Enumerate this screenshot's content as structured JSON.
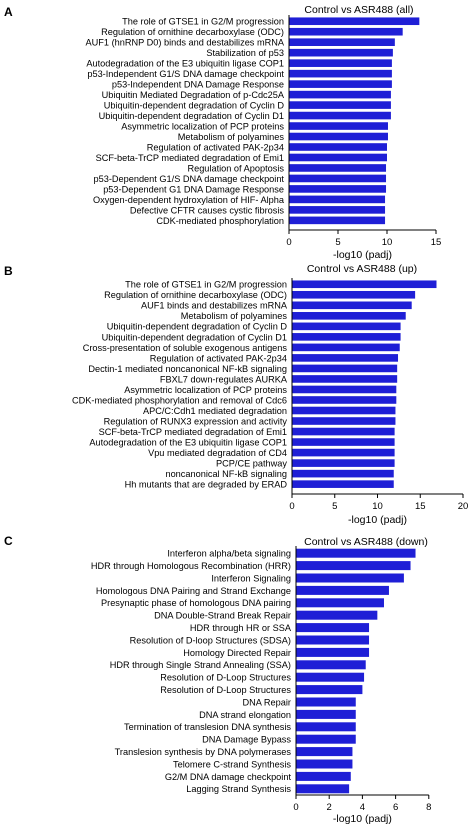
{
  "chart_data": [
    {
      "type": "bar",
      "orientation": "horizontal",
      "panel": "A",
      "title": "Control vs ASR488 (all)",
      "xlabel": "-log10 (padj)",
      "xlim": [
        0,
        15
      ],
      "xticks": [
        0,
        5,
        10,
        15
      ],
      "color": "#1f1fd6",
      "grid": false,
      "categories": [
        "The role of GTSE1 in G2/M progression",
        "Regulation of ornithine decarboxylase (ODC)",
        "AUF1 (hnRNP D0) binds and destabilizes mRNA",
        "Stabilization of p53",
        "Autodegradation of the E3 ubiquitin ligase COP1",
        "p53-Independent G1/S DNA damage checkpoint",
        "p53-Independent DNA Damage Response",
        "Ubiquitin Mediated Degradation of p-Cdc25A",
        "Ubiquitin-dependent degradation of Cyclin D",
        "Ubiquitin-dependent degradation of Cyclin D1",
        "Asymmetric localization of PCP proteins",
        "Metabolism of polyamines",
        "Regulation of activated PAK-2p34",
        "SCF-beta-TrCP mediated degradation of Emi1",
        "Regulation of Apoptosis",
        "p53-Dependent G1/S DNA damage checkpoint",
        "p53-Dependent G1 DNA Damage Response",
        "Oxygen-dependent hydroxylation of HIF- Alpha",
        "Defective CFTR causes cystic fibrosis",
        "CDK-mediated phosphorylation"
      ],
      "values": [
        13.3,
        11.6,
        10.8,
        10.6,
        10.5,
        10.5,
        10.5,
        10.4,
        10.4,
        10.4,
        10.1,
        10.1,
        10.0,
        10.0,
        9.9,
        9.9,
        9.9,
        9.8,
        9.8,
        9.8
      ]
    },
    {
      "type": "bar",
      "orientation": "horizontal",
      "panel": "B",
      "title": "Control vs ASR488 (up)",
      "xlabel": "-log10 (padj)",
      "xlim": [
        0,
        20
      ],
      "xticks": [
        0,
        5,
        10,
        15,
        20
      ],
      "color": "#1f1fd6",
      "grid": false,
      "categories": [
        "The role of GTSE1 in G2/M progression",
        "Regulation of ornithine decarboxylase (ODC)",
        "AUF1 binds and destabilizes mRNA",
        "Metabolism of polyamines",
        "Ubiquitin-dependent degradation of Cyclin D",
        "Ubiquitin-dependent degradation of Cyclin D1",
        "Cross-presentation of soluble exogenous antigens",
        "Regulation of activated PAK-2p34",
        "Dectin-1 mediated noncanonical NF-kB signaling",
        "FBXL7 down-regulates AURKA",
        "Asymmetric localization of PCP proteins",
        "CDK-mediated phosphorylation and removal of Cdc6",
        "APC/C:Cdh1 mediated degradation",
        "Regulation of RUNX3 expression and activity",
        "SCF-beta-TrCP mediated degradation of Emi1",
        "Autodegradation of the E3 ubiquitin ligase COP1",
        "Vpu mediated degradation of CD4",
        "PCP/CE pathway",
        "noncanonical NF-kB signaling",
        "Hh mutants that are degraded by ERAD"
      ],
      "values": [
        16.9,
        14.4,
        14.0,
        13.3,
        12.7,
        12.7,
        12.6,
        12.4,
        12.3,
        12.3,
        12.2,
        12.2,
        12.1,
        12.1,
        12.0,
        12.0,
        12.0,
        12.0,
        11.9,
        11.9
      ]
    },
    {
      "type": "bar",
      "orientation": "horizontal",
      "panel": "C",
      "title": "Control vs ASR488 (down)",
      "xlabel": "-log10 (padj)",
      "xlim": [
        0,
        8
      ],
      "xticks": [
        0,
        2,
        4,
        6,
        8
      ],
      "color": "#1f1fd6",
      "grid": false,
      "categories": [
        "Interferon alpha/beta signaling",
        "HDR through Homologous Recombination (HRR)",
        "Interferon Signaling",
        "Homologous DNA Pairing and Strand Exchange",
        "Presynaptic phase of homologous DNA pairing",
        "DNA Double-Strand Break Repair",
        "HDR through HR or SSA",
        "Resolution of D-loop Structures (SDSA)",
        "Homology Directed Repair",
        "HDR through Single Strand Annealing (SSA)",
        "Resolution of D-Loop Structures",
        "Resolution of D-Loop Structures",
        "DNA Repair",
        "DNA strand elongation",
        "Termination of translesion DNA synthesis",
        "DNA Damage Bypass",
        "Translesion synthesis by DNA polymerases",
        "Telomere C-strand Synthesis",
        "G2/M DNA damage checkpoint",
        "Lagging Strand Synthesis"
      ],
      "values": [
        7.2,
        6.9,
        6.5,
        5.6,
        5.3,
        4.9,
        4.4,
        4.4,
        4.4,
        4.2,
        4.1,
        4.0,
        3.6,
        3.6,
        3.6,
        3.6,
        3.4,
        3.4,
        3.3,
        3.2
      ]
    }
  ]
}
